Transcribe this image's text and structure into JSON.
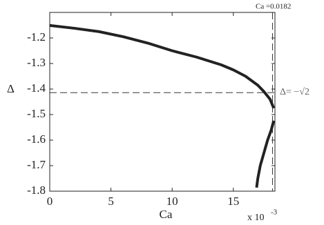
{
  "chart_data": {
    "type": "line",
    "y_label": "Δ",
    "x_label": "Ca",
    "x_multiplier": "x 10",
    "x_exponent": "-3",
    "annotations": [
      "Ca =0.0182",
      "Δ= −√2"
    ],
    "hlines": [
      -1.4142
    ],
    "vlines": [
      18.2
    ],
    "xlim": [
      0,
      18.4
    ],
    "ylim": [
      -1.8,
      -1.1
    ],
    "xticks": [
      0,
      5,
      10,
      15
    ],
    "yticks": [
      -1.2,
      -1.3,
      -1.4,
      -1.5,
      -1.6,
      -1.7,
      -1.8
    ],
    "series": [
      {
        "color": "#222222",
        "x": [
          0,
          2,
          4,
          6,
          8,
          10,
          12,
          14,
          15,
          16,
          17,
          17.5,
          18,
          18.3
        ],
        "values": [
          -1.151,
          -1.162,
          -1.175,
          -1.195,
          -1.22,
          -1.25,
          -1.275,
          -1.305,
          -1.325,
          -1.35,
          -1.385,
          -1.41,
          -1.44,
          -1.475
        ]
      },
      {
        "color": "#222222",
        "x": [
          16.9,
          17.0,
          17.2,
          17.5,
          17.8,
          18.1,
          18.3
        ],
        "values": [
          -1.786,
          -1.75,
          -1.7,
          -1.65,
          -1.6,
          -1.56,
          -1.524
        ]
      }
    ]
  }
}
